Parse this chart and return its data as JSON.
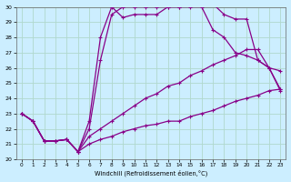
{
  "xlabel": "Windchill (Refroidissement éolien,°C)",
  "bg_color": "#cceeff",
  "grid_color": "#aaddcc",
  "line_color": "#880088",
  "xlim": [
    -0.5,
    23.5
  ],
  "ylim": [
    20,
    30
  ],
  "xticks": [
    0,
    1,
    2,
    3,
    4,
    5,
    6,
    7,
    8,
    9,
    10,
    11,
    12,
    13,
    14,
    15,
    16,
    17,
    18,
    19,
    20,
    21,
    22,
    23
  ],
  "yticks": [
    20,
    21,
    22,
    23,
    24,
    25,
    26,
    27,
    28,
    29,
    30
  ],
  "line1_y": [
    23.0,
    22.5,
    21.2,
    21.2,
    21.3,
    20.5,
    22.5,
    28.0,
    30.0,
    29.3,
    29.5,
    29.5,
    29.5,
    30.0,
    30.0,
    30.2,
    30.2,
    30.2,
    29.5,
    29.2,
    29.2,
    26.5,
    26.0,
    25.8
  ],
  "line2_y": [
    23.0,
    22.5,
    21.2,
    21.2,
    21.3,
    20.5,
    22.0,
    26.5,
    29.5,
    30.0,
    30.0,
    30.0,
    30.0,
    30.0,
    30.0,
    30.0,
    30.0,
    28.5,
    28.0,
    27.0,
    26.8,
    26.5,
    26.0,
    24.5
  ],
  "line3_y": [
    23.0,
    22.5,
    21.2,
    21.2,
    21.3,
    20.5,
    21.5,
    22.0,
    22.5,
    23.0,
    23.5,
    24.0,
    24.3,
    24.8,
    25.0,
    25.5,
    25.8,
    26.2,
    26.5,
    26.8,
    27.2,
    27.2,
    26.0,
    24.6
  ],
  "line4_y": [
    23.0,
    22.5,
    21.2,
    21.2,
    21.3,
    20.5,
    21.0,
    21.3,
    21.5,
    21.8,
    22.0,
    22.2,
    22.3,
    22.5,
    22.5,
    22.8,
    23.0,
    23.2,
    23.5,
    23.8,
    24.0,
    24.2,
    24.5,
    24.6
  ]
}
